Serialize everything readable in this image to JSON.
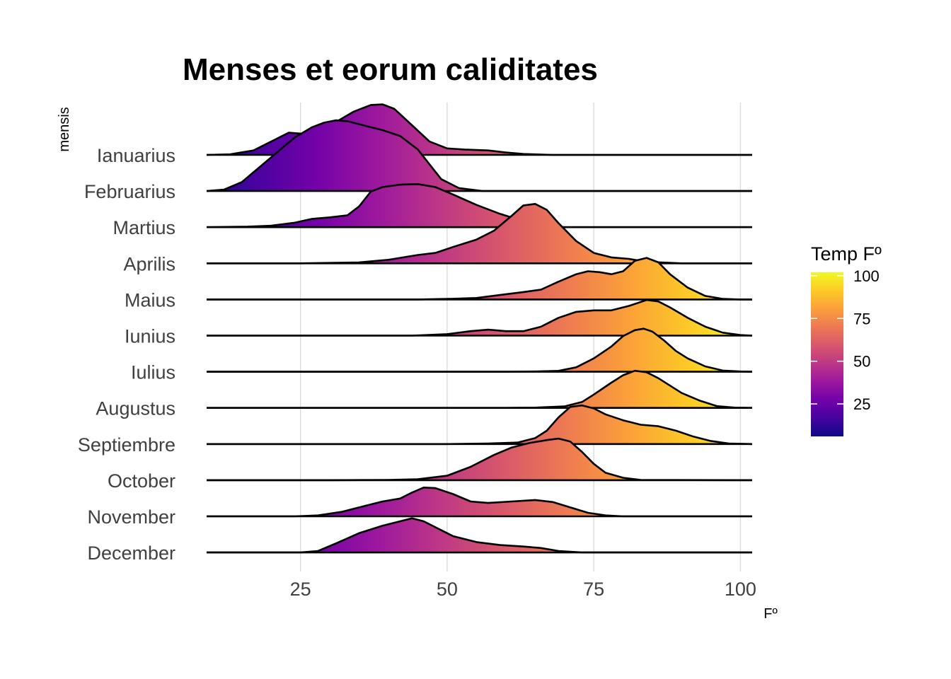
{
  "chart_data": {
    "type": "ridgeline",
    "title": "Menses et eorum caliditates",
    "xlabel": "Fº",
    "ylabel": "mensis",
    "xlim": [
      9,
      102
    ],
    "xticks": [
      25,
      50,
      75,
      100
    ],
    "grid": true,
    "legend": {
      "title": "Temp Fº",
      "placement": "right",
      "range": [
        6,
        102
      ],
      "ticks": [
        25,
        50,
        75,
        100
      ],
      "colors": [
        "#0d0887",
        "#46039f",
        "#7201a8",
        "#9c179e",
        "#bd3786",
        "#d8576b",
        "#ed7953",
        "#fb9f3a",
        "#fdca26",
        "#f0f921"
      ]
    },
    "series": [
      {
        "name": "Ianuarius",
        "density": [
          [
            9,
            0
          ],
          [
            13,
            0.02
          ],
          [
            17,
            0.15
          ],
          [
            20,
            0.45
          ],
          [
            23,
            0.75
          ],
          [
            26,
            0.7
          ],
          [
            28,
            0.75
          ],
          [
            31,
            1.1
          ],
          [
            34,
            1.45
          ],
          [
            37,
            1.68
          ],
          [
            39,
            1.7
          ],
          [
            41,
            1.55
          ],
          [
            44,
            1.0
          ],
          [
            47,
            0.45
          ],
          [
            50,
            0.22
          ],
          [
            53,
            0.18
          ],
          [
            57,
            0.15
          ],
          [
            60,
            0.08
          ],
          [
            63,
            0.03
          ],
          [
            68,
            0
          ],
          [
            102,
            0
          ]
        ]
      },
      {
        "name": "Februarius",
        "density": [
          [
            9,
            0
          ],
          [
            12,
            0.05
          ],
          [
            15,
            0.3
          ],
          [
            18,
            0.8
          ],
          [
            21,
            1.3
          ],
          [
            24,
            1.8
          ],
          [
            27,
            2.15
          ],
          [
            29,
            2.3
          ],
          [
            31,
            2.38
          ],
          [
            33,
            2.35
          ],
          [
            36,
            2.2
          ],
          [
            39,
            2.05
          ],
          [
            42,
            1.85
          ],
          [
            45,
            1.4
          ],
          [
            47,
            0.9
          ],
          [
            49,
            0.4
          ],
          [
            52,
            0.1
          ],
          [
            56,
            0
          ],
          [
            102,
            0
          ]
        ]
      },
      {
        "name": "Martius",
        "density": [
          [
            9,
            0
          ],
          [
            16,
            0.02
          ],
          [
            20,
            0.05
          ],
          [
            24,
            0.15
          ],
          [
            27,
            0.28
          ],
          [
            30,
            0.33
          ],
          [
            33,
            0.4
          ],
          [
            35,
            0.7
          ],
          [
            37,
            1.2
          ],
          [
            39,
            1.35
          ],
          [
            42,
            1.43
          ],
          [
            45,
            1.45
          ],
          [
            48,
            1.35
          ],
          [
            51,
            1.1
          ],
          [
            55,
            0.75
          ],
          [
            59,
            0.45
          ],
          [
            63,
            0.2
          ],
          [
            67,
            0.05
          ],
          [
            70,
            0
          ],
          [
            102,
            0
          ]
        ]
      },
      {
        "name": "Aprilis",
        "density": [
          [
            9,
            0
          ],
          [
            25,
            0
          ],
          [
            35,
            0.03
          ],
          [
            40,
            0.12
          ],
          [
            45,
            0.28
          ],
          [
            48,
            0.35
          ],
          [
            51,
            0.55
          ],
          [
            55,
            0.8
          ],
          [
            58,
            1.1
          ],
          [
            61,
            1.6
          ],
          [
            63,
            1.95
          ],
          [
            65,
            2.0
          ],
          [
            67,
            1.8
          ],
          [
            69,
            1.35
          ],
          [
            72,
            0.75
          ],
          [
            75,
            0.35
          ],
          [
            78,
            0.2
          ],
          [
            81,
            0.15
          ],
          [
            84,
            0.05
          ],
          [
            90,
            0
          ],
          [
            102,
            0
          ]
        ]
      },
      {
        "name": "Maius",
        "density": [
          [
            9,
            0
          ],
          [
            45,
            0
          ],
          [
            50,
            0.02
          ],
          [
            55,
            0.05
          ],
          [
            59,
            0.15
          ],
          [
            63,
            0.25
          ],
          [
            66,
            0.33
          ],
          [
            69,
            0.6
          ],
          [
            72,
            0.85
          ],
          [
            74,
            0.95
          ],
          [
            76,
            0.92
          ],
          [
            78,
            0.85
          ],
          [
            80,
            0.95
          ],
          [
            82,
            1.3
          ],
          [
            84,
            1.4
          ],
          [
            86,
            1.25
          ],
          [
            88,
            0.85
          ],
          [
            91,
            0.4
          ],
          [
            94,
            0.12
          ],
          [
            97,
            0.02
          ],
          [
            100,
            0
          ],
          [
            102,
            0
          ]
        ]
      },
      {
        "name": "Iunius",
        "density": [
          [
            9,
            0
          ],
          [
            44,
            0
          ],
          [
            50,
            0.05
          ],
          [
            54,
            0.15
          ],
          [
            57,
            0.2
          ],
          [
            60,
            0.15
          ],
          [
            63,
            0.15
          ],
          [
            66,
            0.3
          ],
          [
            69,
            0.6
          ],
          [
            72,
            0.8
          ],
          [
            75,
            0.85
          ],
          [
            78,
            0.85
          ],
          [
            81,
            1.0
          ],
          [
            84,
            1.2
          ],
          [
            86,
            1.15
          ],
          [
            88,
            0.95
          ],
          [
            91,
            0.6
          ],
          [
            94,
            0.3
          ],
          [
            97,
            0.1
          ],
          [
            100,
            0.02
          ],
          [
            102,
            0
          ]
        ]
      },
      {
        "name": "Iulius",
        "density": [
          [
            9,
            0
          ],
          [
            60,
            0
          ],
          [
            65,
            0.01
          ],
          [
            69,
            0.03
          ],
          [
            72,
            0.15
          ],
          [
            75,
            0.45
          ],
          [
            78,
            0.85
          ],
          [
            80,
            1.2
          ],
          [
            82,
            1.4
          ],
          [
            83.5,
            1.45
          ],
          [
            85,
            1.35
          ],
          [
            87,
            1.05
          ],
          [
            89,
            0.7
          ],
          [
            91,
            0.45
          ],
          [
            94,
            0.18
          ],
          [
            97,
            0.04
          ],
          [
            100,
            0.01
          ],
          [
            102,
            0
          ]
        ]
      },
      {
        "name": "Augustus",
        "density": [
          [
            9,
            0
          ],
          [
            60,
            0
          ],
          [
            65,
            0.01
          ],
          [
            70,
            0.05
          ],
          [
            73,
            0.2
          ],
          [
            75,
            0.45
          ],
          [
            78,
            0.85
          ],
          [
            80,
            1.1
          ],
          [
            82,
            1.25
          ],
          [
            84,
            1.2
          ],
          [
            86,
            1.0
          ],
          [
            88,
            0.75
          ],
          [
            90,
            0.5
          ],
          [
            93,
            0.25
          ],
          [
            96,
            0.06
          ],
          [
            99,
            0.01
          ],
          [
            102,
            0
          ]
        ]
      },
      {
        "name": "Septiembre",
        "density": [
          [
            9,
            0
          ],
          [
            50,
            0
          ],
          [
            57,
            0.02
          ],
          [
            62,
            0.05
          ],
          [
            65,
            0.2
          ],
          [
            67,
            0.45
          ],
          [
            69,
            0.9
          ],
          [
            71,
            1.25
          ],
          [
            73,
            1.3
          ],
          [
            75,
            1.2
          ],
          [
            77,
            1.0
          ],
          [
            80,
            0.8
          ],
          [
            83,
            0.65
          ],
          [
            86,
            0.6
          ],
          [
            89,
            0.45
          ],
          [
            92,
            0.25
          ],
          [
            95,
            0.1
          ],
          [
            98,
            0.02
          ],
          [
            102,
            0
          ]
        ]
      },
      {
        "name": "October",
        "density": [
          [
            9,
            0
          ],
          [
            30,
            0
          ],
          [
            40,
            0.01
          ],
          [
            45,
            0.03
          ],
          [
            50,
            0.15
          ],
          [
            54,
            0.45
          ],
          [
            58,
            0.85
          ],
          [
            61,
            1.1
          ],
          [
            64,
            1.25
          ],
          [
            67,
            1.35
          ],
          [
            69,
            1.4
          ],
          [
            71,
            1.3
          ],
          [
            73,
            0.95
          ],
          [
            75,
            0.55
          ],
          [
            77,
            0.25
          ],
          [
            80,
            0.08
          ],
          [
            83,
            0.01
          ],
          [
            102,
            0
          ]
        ]
      },
      {
        "name": "November",
        "density": [
          [
            9,
            0
          ],
          [
            24,
            0
          ],
          [
            28,
            0.03
          ],
          [
            32,
            0.15
          ],
          [
            36,
            0.35
          ],
          [
            39,
            0.5
          ],
          [
            42,
            0.6
          ],
          [
            44,
            0.8
          ],
          [
            46,
            0.97
          ],
          [
            48,
            0.95
          ],
          [
            51,
            0.75
          ],
          [
            54,
            0.5
          ],
          [
            57,
            0.45
          ],
          [
            61,
            0.5
          ],
          [
            65,
            0.55
          ],
          [
            68,
            0.48
          ],
          [
            71,
            0.3
          ],
          [
            74,
            0.12
          ],
          [
            77,
            0.03
          ],
          [
            80,
            0
          ],
          [
            102,
            0
          ]
        ]
      },
      {
        "name": "December",
        "density": [
          [
            9,
            0
          ],
          [
            25,
            0
          ],
          [
            28,
            0.05
          ],
          [
            31,
            0.3
          ],
          [
            35,
            0.65
          ],
          [
            39,
            0.9
          ],
          [
            42,
            1.05
          ],
          [
            44,
            1.15
          ],
          [
            46,
            1.05
          ],
          [
            48,
            0.85
          ],
          [
            51,
            0.55
          ],
          [
            55,
            0.35
          ],
          [
            59,
            0.25
          ],
          [
            63,
            0.2
          ],
          [
            66,
            0.15
          ],
          [
            69,
            0.05
          ],
          [
            73,
            0
          ],
          [
            102,
            0
          ]
        ]
      }
    ]
  }
}
